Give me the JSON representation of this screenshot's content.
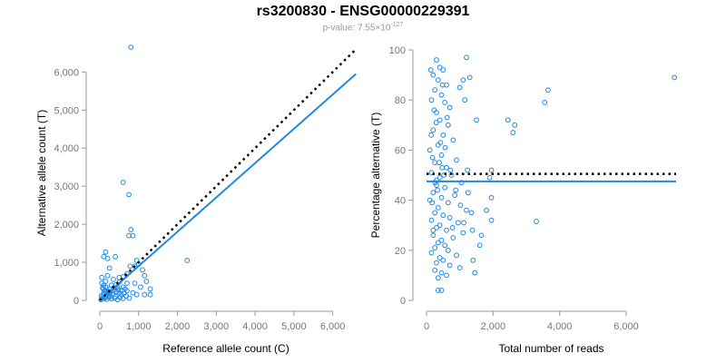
{
  "title": "rs3200830 - ENSG00000229391",
  "subtitle": {
    "prefix": "p-value: 7.55×10",
    "exponent": "-127"
  },
  "colors": {
    "points": "#1e88e5",
    "fit_line": "#1e88e5",
    "ref_line": "#000000",
    "axis": "#999999",
    "tick_label": "#777777"
  },
  "chart_data": [
    {
      "type": "scatter",
      "xlabel": "Reference allele count (C)",
      "ylabel": "Alternative allele count (T)",
      "xlim": [
        0,
        6500
      ],
      "ylim": [
        0,
        6700
      ],
      "xticks": [
        0,
        1000,
        2000,
        3000,
        4000,
        5000,
        6000
      ],
      "xtick_labels": [
        "0",
        "1,000",
        "2,000",
        "3,000",
        "4,000",
        "5,000",
        "6,000"
      ],
      "yticks": [
        0,
        1000,
        2000,
        3000,
        4000,
        5000,
        6000
      ],
      "ytick_labels": [
        "0",
        "1,000",
        "2,000",
        "3,000",
        "4,000",
        "5,000",
        "6,000"
      ],
      "grid": false,
      "points": [
        [
          800,
          6650
        ],
        [
          600,
          3100
        ],
        [
          750,
          2780
        ],
        [
          800,
          1860
        ],
        [
          750,
          1700
        ],
        [
          850,
          1700
        ],
        [
          2250,
          1050
        ],
        [
          150,
          1270
        ],
        [
          100,
          1150
        ],
        [
          200,
          1100
        ],
        [
          400,
          1150
        ],
        [
          950,
          1050
        ],
        [
          1000,
          950
        ],
        [
          250,
          850
        ],
        [
          1100,
          800
        ],
        [
          1150,
          650
        ],
        [
          50,
          600
        ],
        [
          200,
          650
        ],
        [
          350,
          550
        ],
        [
          500,
          600
        ],
        [
          700,
          450
        ],
        [
          900,
          450
        ],
        [
          1200,
          500
        ],
        [
          1300,
          300
        ],
        [
          150,
          500
        ],
        [
          600,
          350
        ],
        [
          1050,
          350
        ],
        [
          1300,
          150
        ],
        [
          50,
          450
        ],
        [
          100,
          400
        ],
        [
          150,
          350
        ],
        [
          300,
          400
        ],
        [
          450,
          350
        ],
        [
          650,
          300
        ],
        [
          250,
          300
        ],
        [
          120,
          250
        ],
        [
          200,
          200
        ],
        [
          350,
          250
        ],
        [
          500,
          200
        ],
        [
          700,
          250
        ],
        [
          850,
          200
        ],
        [
          950,
          150
        ],
        [
          80,
          150
        ],
        [
          150,
          100
        ],
        [
          250,
          120
        ],
        [
          400,
          100
        ],
        [
          550,
          150
        ],
        [
          1150,
          150
        ],
        [
          60,
          60
        ],
        [
          120,
          50
        ],
        [
          180,
          30
        ],
        [
          240,
          80
        ],
        [
          300,
          40
        ],
        [
          380,
          60
        ],
        [
          460,
          20
        ],
        [
          520,
          80
        ],
        [
          600,
          50
        ],
        [
          680,
          110
        ],
        [
          760,
          60
        ],
        [
          30,
          20
        ],
        [
          90,
          300
        ],
        [
          160,
          220
        ],
        [
          220,
          160
        ],
        [
          330,
          180
        ],
        [
          420,
          230
        ],
        [
          480,
          280
        ],
        [
          560,
          260
        ],
        [
          620,
          190
        ],
        [
          40,
          120
        ],
        [
          110,
          180
        ],
        [
          190,
          260
        ],
        [
          270,
          210
        ],
        [
          140,
          80
        ],
        [
          70,
          330
        ],
        [
          600,
          620
        ],
        [
          700,
          700
        ],
        [
          780,
          900
        ],
        [
          900,
          900
        ],
        [
          360,
          330
        ],
        [
          420,
          410
        ],
        [
          250,
          230
        ],
        [
          500,
          480
        ]
      ],
      "fit_line": {
        "from": [
          0,
          0
        ],
        "to": [
          6600,
          5950
        ]
      },
      "ref_line": {
        "from": [
          0,
          0
        ],
        "to": [
          6600,
          6600
        ]
      }
    },
    {
      "type": "scatter",
      "xlabel": "Total number of reads",
      "ylabel": "Percentage alternative (T)",
      "xlim": [
        0,
        7500
      ],
      "ylim": [
        0,
        100
      ],
      "xticks": [
        0,
        2000,
        4000,
        6000
      ],
      "xtick_labels": [
        "0",
        "2,000",
        "4,000",
        "6,000"
      ],
      "yticks": [
        0,
        20,
        40,
        60,
        80,
        100
      ],
      "ytick_labels": [
        "0",
        "20",
        "40",
        "60",
        "80",
        "100"
      ],
      "grid": false,
      "points": [
        [
          7450,
          89
        ],
        [
          3650,
          84
        ],
        [
          3550,
          79
        ],
        [
          2650,
          70
        ],
        [
          2600,
          67
        ],
        [
          2450,
          72
        ],
        [
          3300,
          31.5
        ],
        [
          1950,
          52
        ],
        [
          1900,
          49
        ],
        [
          1950,
          41
        ],
        [
          1950,
          32
        ],
        [
          1800,
          36
        ],
        [
          1650,
          26
        ],
        [
          1600,
          22
        ],
        [
          1450,
          11
        ],
        [
          1400,
          16
        ],
        [
          1500,
          72
        ],
        [
          1200,
          97
        ],
        [
          1300,
          89
        ],
        [
          1100,
          88
        ],
        [
          1150,
          80
        ],
        [
          1000,
          85
        ],
        [
          300,
          96
        ],
        [
          400,
          93
        ],
        [
          500,
          92
        ],
        [
          200,
          90
        ],
        [
          350,
          88
        ],
        [
          600,
          86
        ],
        [
          250,
          84
        ],
        [
          450,
          82
        ],
        [
          150,
          80
        ],
        [
          550,
          79
        ],
        [
          700,
          77
        ],
        [
          300,
          75
        ],
        [
          400,
          72
        ],
        [
          650,
          70
        ],
        [
          200,
          68
        ],
        [
          500,
          66
        ],
        [
          800,
          64
        ],
        [
          350,
          62
        ],
        [
          100,
          60
        ],
        [
          450,
          58
        ],
        [
          900,
          56
        ],
        [
          250,
          55
        ],
        [
          600,
          53
        ],
        [
          150,
          51
        ],
        [
          750,
          50
        ],
        [
          400,
          49
        ],
        [
          1050,
          47
        ],
        [
          300,
          46
        ],
        [
          550,
          45
        ],
        [
          200,
          43
        ],
        [
          850,
          42
        ],
        [
          450,
          41
        ],
        [
          100,
          40
        ],
        [
          650,
          39
        ],
        [
          350,
          37
        ],
        [
          1200,
          36
        ],
        [
          250,
          35
        ],
        [
          500,
          34
        ],
        [
          700,
          33
        ],
        [
          150,
          32
        ],
        [
          950,
          31
        ],
        [
          400,
          30
        ],
        [
          300,
          29
        ],
        [
          600,
          28
        ],
        [
          1100,
          27
        ],
        [
          200,
          26
        ],
        [
          800,
          25
        ],
        [
          450,
          24
        ],
        [
          350,
          23
        ],
        [
          550,
          22
        ],
        [
          250,
          21
        ],
        [
          650,
          20
        ],
        [
          150,
          19
        ],
        [
          900,
          18
        ],
        [
          400,
          17
        ],
        [
          500,
          16
        ],
        [
          300,
          15
        ],
        [
          700,
          14
        ],
        [
          1000,
          13
        ],
        [
          250,
          12
        ],
        [
          450,
          11
        ],
        [
          600,
          10
        ],
        [
          350,
          9
        ],
        [
          350,
          4
        ],
        [
          450,
          4
        ],
        [
          200,
          28
        ],
        [
          300,
          48
        ],
        [
          520,
          50
        ],
        [
          720,
          52
        ],
        [
          180,
          57
        ],
        [
          420,
          63
        ],
        [
          620,
          73
        ],
        [
          880,
          44
        ],
        [
          1020,
          38
        ],
        [
          1120,
          31
        ],
        [
          1250,
          43
        ],
        [
          1350,
          35
        ],
        [
          780,
          29
        ],
        [
          560,
          61
        ],
        [
          470,
          53
        ],
        [
          260,
          47
        ],
        [
          170,
          39
        ],
        [
          330,
          44
        ],
        [
          380,
          55
        ],
        [
          140,
          66
        ],
        [
          290,
          71
        ],
        [
          230,
          76
        ],
        [
          480,
          86
        ],
        [
          130,
          92
        ],
        [
          1230,
          52
        ],
        [
          1380,
          28
        ]
      ],
      "fit_line": {
        "from": [
          0,
          47.5
        ],
        "to": [
          7500,
          47.5
        ]
      },
      "ref_line": {
        "from": [
          0,
          50.5
        ],
        "to": [
          7500,
          50.5
        ]
      }
    }
  ]
}
